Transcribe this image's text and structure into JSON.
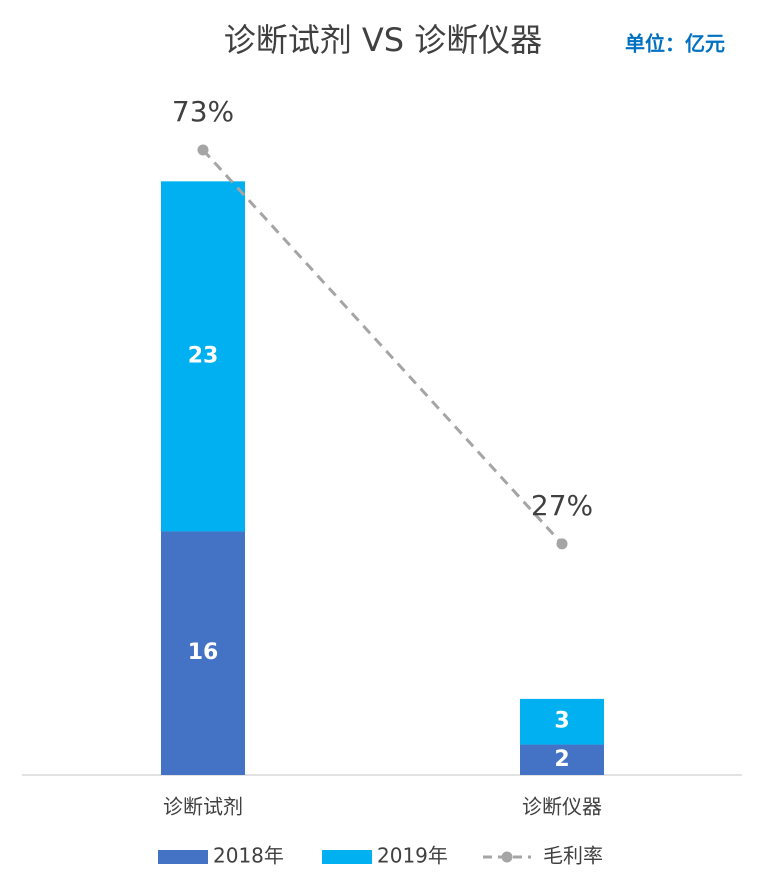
{
  "chart_data": {
    "type": "bar",
    "stacked": true,
    "title": "诊断试剂 VS  诊断仪器",
    "annotation": "单位：亿元",
    "categories": [
      "诊断试剂",
      "诊断仪器"
    ],
    "series": [
      {
        "name": "2018年",
        "color": "#4472c4",
        "values": [
          16,
          2
        ]
      },
      {
        "name": "2019年",
        "color": "#00b0f0",
        "values": [
          23,
          3
        ]
      },
      {
        "name": "毛利率",
        "type": "line",
        "axis": "y2",
        "color": "#a5a5a5",
        "values": [
          73,
          27
        ],
        "value_labels": [
          "73%",
          "27%"
        ]
      }
    ],
    "ylim": [
      0,
      45
    ],
    "y2lim": [
      0,
      80
    ],
    "legend": "bottom"
  }
}
